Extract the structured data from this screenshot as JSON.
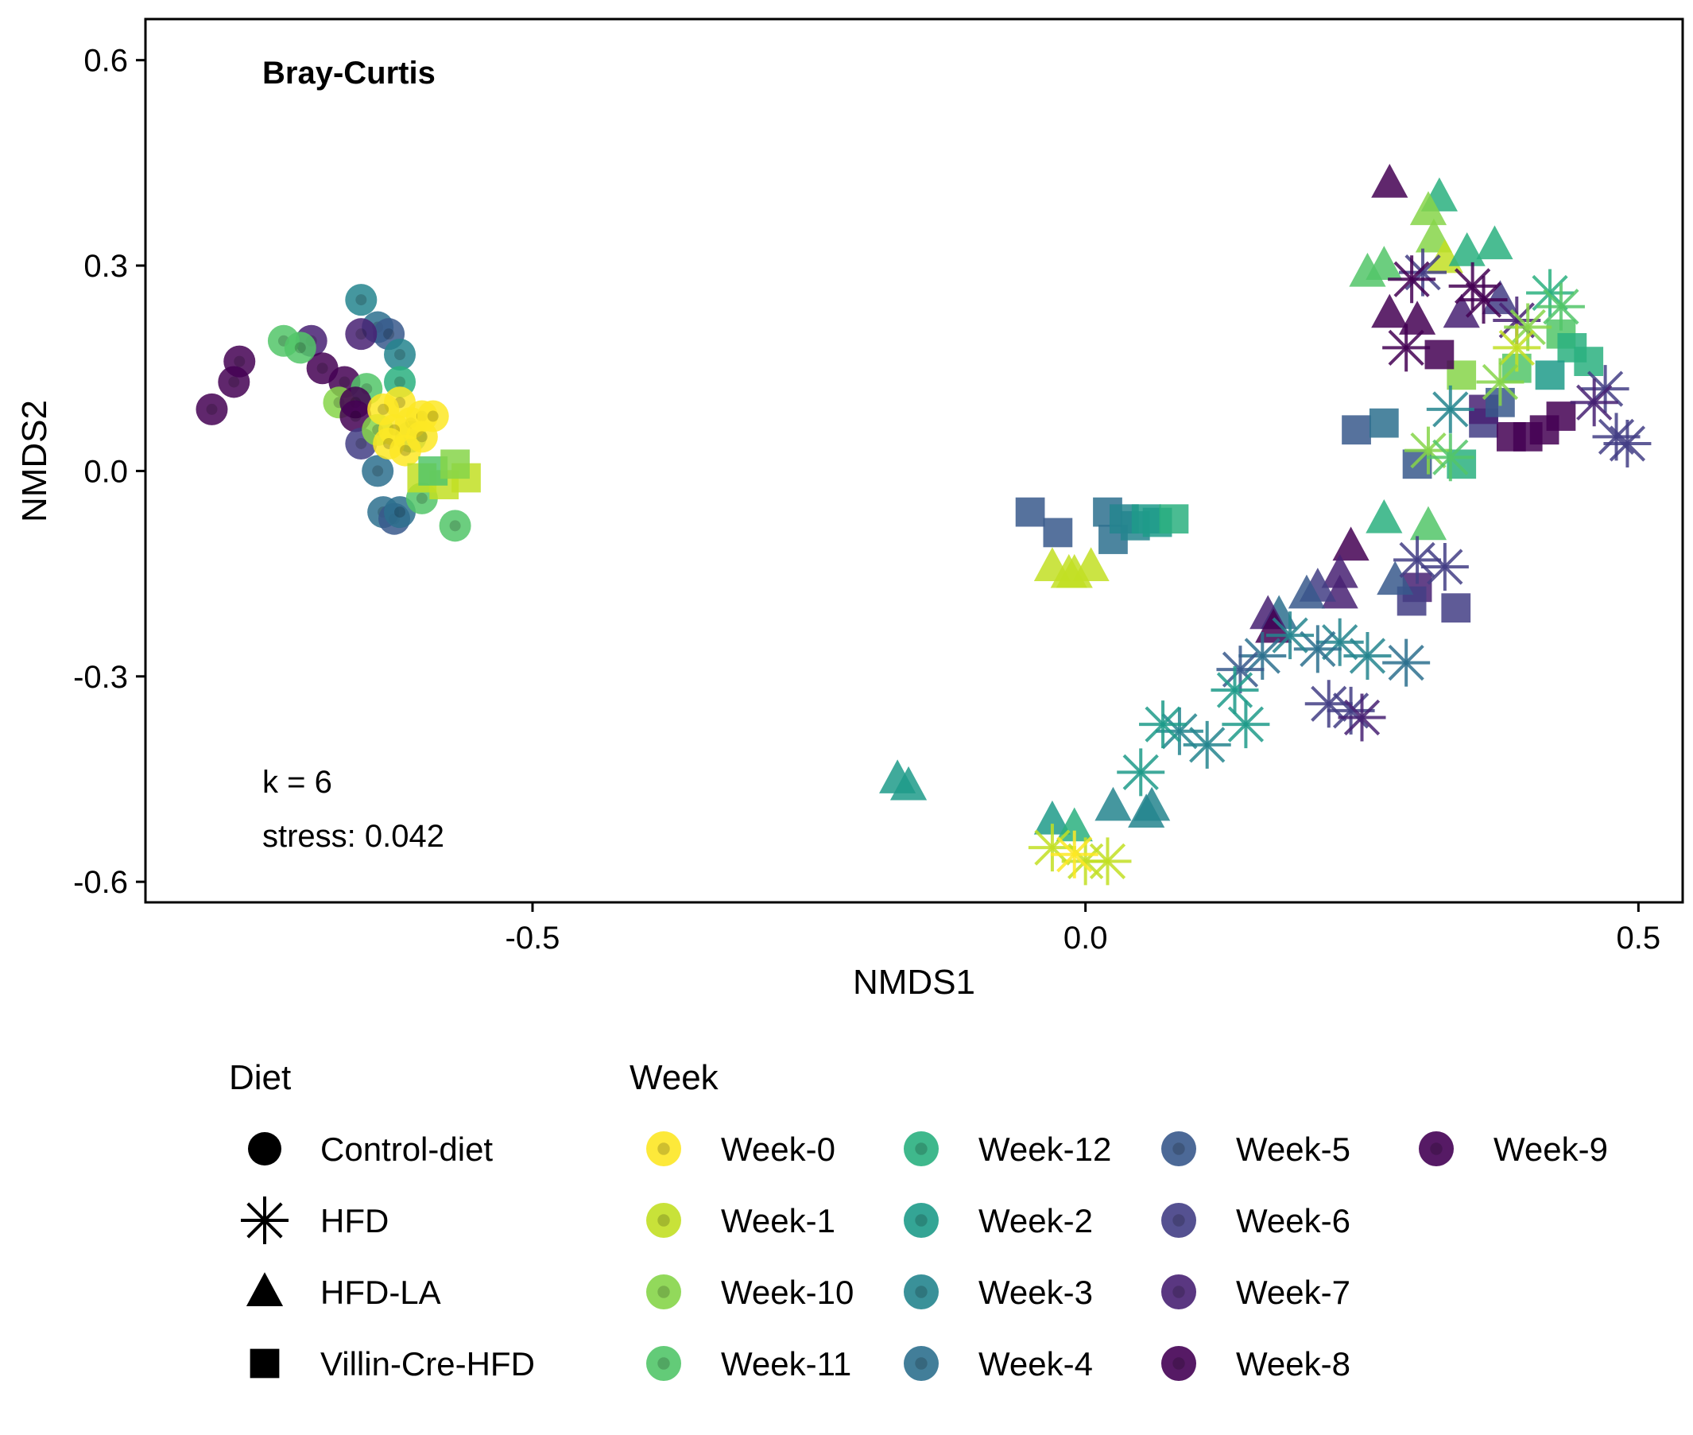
{
  "chart_data": {
    "type": "scatter",
    "title": "Bray-Curtis",
    "xlabel": "NMDS1",
    "ylabel": "NMDS2",
    "xlim": [
      -0.85,
      0.54
    ],
    "ylim": [
      -0.63,
      0.66
    ],
    "xticks": [
      {
        "v": -0.5,
        "label": "-0.5"
      },
      {
        "v": 0.0,
        "label": "0.0"
      },
      {
        "v": 0.5,
        "label": "0.5"
      }
    ],
    "yticks": [
      {
        "v": 0.6,
        "label": "0.6"
      },
      {
        "v": 0.3,
        "label": "0.3"
      },
      {
        "v": 0.0,
        "label": "0.0"
      },
      {
        "v": -0.3,
        "label": "-0.3"
      },
      {
        "v": -0.6,
        "label": "-0.6"
      }
    ],
    "annotations": {
      "k": "k = 6",
      "stress": "stress: 0.042"
    },
    "grid": false,
    "legend_position": "bottom",
    "diet_legend": {
      "title": "Diet",
      "items": [
        {
          "name": "Control-diet",
          "shape": "circle"
        },
        {
          "name": "HFD",
          "shape": "asterisk"
        },
        {
          "name": "HFD-LA",
          "shape": "triangle"
        },
        {
          "name": "Villin-Cre-HFD",
          "shape": "square"
        }
      ]
    },
    "week_legend": {
      "title": "Week",
      "items": [
        {
          "name": "Week-0",
          "color": "#FDE725"
        },
        {
          "name": "Week-1",
          "color": "#C2DF23"
        },
        {
          "name": "Week-10",
          "color": "#86D549"
        },
        {
          "name": "Week-11",
          "color": "#52C569"
        },
        {
          "name": "Week-12",
          "color": "#2AB07F"
        },
        {
          "name": "Week-2",
          "color": "#1E9B8A"
        },
        {
          "name": "Week-3",
          "color": "#25858E"
        },
        {
          "name": "Week-4",
          "color": "#2D708E"
        },
        {
          "name": "Week-5",
          "color": "#38598C"
        },
        {
          "name": "Week-6",
          "color": "#433E85"
        },
        {
          "name": "Week-7",
          "color": "#482173"
        },
        {
          "name": "Week-8",
          "color": "#440154"
        },
        {
          "name": "Week-9",
          "color": "#440154"
        }
      ]
    },
    "series": [
      {
        "diet": "Control-diet",
        "points": [
          [
            -0.79,
            0.09,
            "Week-8"
          ],
          [
            -0.77,
            0.13,
            "Week-8"
          ],
          [
            -0.765,
            0.16,
            "Week-8"
          ],
          [
            -0.7,
            0.19,
            "Week-7"
          ],
          [
            -0.69,
            0.15,
            "Week-9"
          ],
          [
            -0.67,
            0.13,
            "Week-8"
          ],
          [
            -0.725,
            0.19,
            "Week-11"
          ],
          [
            -0.71,
            0.18,
            "Week-11"
          ],
          [
            -0.675,
            0.1,
            "Week-10"
          ],
          [
            -0.655,
            0.25,
            "Week-3"
          ],
          [
            -0.64,
            0.21,
            "Week-4"
          ],
          [
            -0.63,
            0.2,
            "Week-5"
          ],
          [
            -0.655,
            0.2,
            "Week-7"
          ],
          [
            -0.62,
            0.17,
            "Week-3"
          ],
          [
            -0.65,
            0.12,
            "Week-11"
          ],
          [
            -0.66,
            0.1,
            "Week-8"
          ],
          [
            -0.66,
            0.08,
            "Week-9"
          ],
          [
            -0.655,
            0.04,
            "Week-6"
          ],
          [
            -0.64,
            0.06,
            "Week-10"
          ],
          [
            -0.64,
            0.0,
            "Week-4"
          ],
          [
            -0.635,
            -0.06,
            "Week-4"
          ],
          [
            -0.625,
            -0.07,
            "Week-5"
          ],
          [
            -0.62,
            -0.06,
            "Week-4"
          ],
          [
            -0.61,
            0.05,
            "Week-2"
          ],
          [
            -0.62,
            0.13,
            "Week-12"
          ],
          [
            -0.6,
            -0.04,
            "Week-11"
          ],
          [
            -0.57,
            -0.08,
            "Week-11"
          ],
          [
            -0.62,
            0.1,
            "Week-0"
          ],
          [
            -0.61,
            0.07,
            "Week-0"
          ],
          [
            -0.635,
            0.09,
            "Week-0"
          ],
          [
            -0.6,
            0.08,
            "Week-0"
          ],
          [
            -0.625,
            0.06,
            "Week-0"
          ],
          [
            -0.63,
            0.04,
            "Week-0"
          ],
          [
            -0.6,
            0.05,
            "Week-0"
          ],
          [
            -0.615,
            0.03,
            "Week-0"
          ],
          [
            -0.59,
            0.08,
            "Week-0"
          ]
        ]
      },
      {
        "diet": "Villin-Cre-HFD",
        "points": [
          [
            -0.6,
            -0.01,
            "Week-1"
          ],
          [
            -0.58,
            -0.02,
            "Week-1"
          ],
          [
            -0.56,
            -0.01,
            "Week-1"
          ],
          [
            -0.59,
            0.0,
            "Week-11"
          ],
          [
            -0.57,
            0.01,
            "Week-10"
          ],
          [
            -0.05,
            -0.06,
            "Week-5"
          ],
          [
            -0.025,
            -0.09,
            "Week-5"
          ],
          [
            0.02,
            -0.06,
            "Week-4"
          ],
          [
            0.025,
            -0.1,
            "Week-4"
          ],
          [
            0.035,
            -0.07,
            "Week-3"
          ],
          [
            0.045,
            -0.08,
            "Week-3"
          ],
          [
            0.055,
            -0.07,
            "Week-2"
          ],
          [
            0.065,
            -0.075,
            "Week-2"
          ],
          [
            0.08,
            -0.07,
            "Week-12"
          ],
          [
            0.245,
            0.06,
            "Week-5"
          ],
          [
            0.27,
            0.07,
            "Week-4"
          ],
          [
            0.3,
            0.01,
            "Week-5"
          ],
          [
            0.34,
            0.01,
            "Week-12"
          ],
          [
            0.34,
            0.14,
            "Week-10"
          ],
          [
            0.39,
            0.15,
            "Week-11"
          ],
          [
            0.32,
            0.17,
            "Week-9"
          ],
          [
            0.36,
            0.07,
            "Week-6"
          ],
          [
            0.385,
            0.05,
            "Week-9"
          ],
          [
            0.4,
            0.05,
            "Week-9"
          ],
          [
            0.415,
            0.06,
            "Week-9"
          ],
          [
            0.43,
            0.08,
            "Week-8"
          ],
          [
            0.36,
            0.09,
            "Week-7"
          ],
          [
            0.375,
            0.1,
            "Week-5"
          ],
          [
            0.43,
            0.2,
            "Week-11"
          ],
          [
            0.44,
            0.18,
            "Week-12"
          ],
          [
            0.455,
            0.16,
            "Week-12"
          ],
          [
            0.42,
            0.14,
            "Week-2"
          ],
          [
            0.335,
            -0.2,
            "Week-6"
          ],
          [
            0.3,
            -0.17,
            "Week-7"
          ],
          [
            0.295,
            -0.19,
            "Week-6"
          ]
        ]
      },
      {
        "diet": "HFD-LA",
        "points": [
          [
            0.275,
            0.42,
            "Week-9"
          ],
          [
            0.32,
            0.4,
            "Week-12"
          ],
          [
            0.31,
            0.38,
            "Week-10"
          ],
          [
            0.315,
            0.34,
            "Week-10"
          ],
          [
            0.325,
            0.31,
            "Week-1"
          ],
          [
            0.345,
            0.32,
            "Week-12"
          ],
          [
            0.37,
            0.33,
            "Week-12"
          ],
          [
            0.255,
            0.29,
            "Week-11"
          ],
          [
            0.27,
            0.3,
            "Week-11"
          ],
          [
            0.275,
            0.23,
            "Week-9"
          ],
          [
            0.3,
            0.22,
            "Week-8"
          ],
          [
            0.34,
            0.23,
            "Week-7"
          ],
          [
            0.375,
            0.25,
            "Week-6"
          ],
          [
            -0.03,
            -0.14,
            "Week-1"
          ],
          [
            -0.01,
            -0.15,
            "Week-1"
          ],
          [
            0.005,
            -0.14,
            "Week-1"
          ],
          [
            -0.015,
            -0.15,
            "Week-1"
          ],
          [
            -0.17,
            -0.45,
            "Week-2"
          ],
          [
            -0.16,
            -0.46,
            "Week-2"
          ],
          [
            -0.03,
            -0.51,
            "Week-2"
          ],
          [
            -0.01,
            -0.52,
            "Week-12"
          ],
          [
            0.025,
            -0.49,
            "Week-3"
          ],
          [
            0.055,
            -0.5,
            "Week-3"
          ],
          [
            0.06,
            -0.49,
            "Week-3"
          ],
          [
            0.27,
            -0.07,
            "Week-12"
          ],
          [
            0.31,
            -0.08,
            "Week-11"
          ],
          [
            0.28,
            -0.16,
            "Week-5"
          ],
          [
            0.24,
            -0.11,
            "Week-8"
          ],
          [
            0.23,
            -0.15,
            "Week-7"
          ],
          [
            0.23,
            -0.18,
            "Week-7"
          ],
          [
            0.21,
            -0.17,
            "Week-6"
          ],
          [
            0.2,
            -0.18,
            "Week-5"
          ],
          [
            0.175,
            -0.21,
            "Week-4"
          ],
          [
            0.165,
            -0.21,
            "Week-7"
          ],
          [
            0.17,
            -0.23,
            "Week-8"
          ]
        ]
      },
      {
        "diet": "HFD",
        "points": [
          [
            0.305,
            0.29,
            "Week-6"
          ],
          [
            0.295,
            0.28,
            "Week-9"
          ],
          [
            0.35,
            0.27,
            "Week-9"
          ],
          [
            0.36,
            0.25,
            "Week-8"
          ],
          [
            0.39,
            0.22,
            "Week-7"
          ],
          [
            0.42,
            0.26,
            "Week-12"
          ],
          [
            0.43,
            0.24,
            "Week-11"
          ],
          [
            0.4,
            0.21,
            "Week-10"
          ],
          [
            0.39,
            0.18,
            "Week-1"
          ],
          [
            0.29,
            0.18,
            "Week-9"
          ],
          [
            0.375,
            0.13,
            "Week-10"
          ],
          [
            0.47,
            0.12,
            "Week-6"
          ],
          [
            0.46,
            0.1,
            "Week-7"
          ],
          [
            0.48,
            0.05,
            "Week-6"
          ],
          [
            0.49,
            0.04,
            "Week-6"
          ],
          [
            0.33,
            0.09,
            "Week-3"
          ],
          [
            0.31,
            0.03,
            "Week-10"
          ],
          [
            0.33,
            0.02,
            "Week-11"
          ],
          [
            0.3,
            -0.13,
            "Week-6"
          ],
          [
            0.325,
            -0.14,
            "Week-6"
          ],
          [
            0.29,
            -0.28,
            "Week-4"
          ],
          [
            0.255,
            -0.27,
            "Week-3"
          ],
          [
            0.23,
            -0.25,
            "Week-3"
          ],
          [
            0.21,
            -0.26,
            "Week-4"
          ],
          [
            0.185,
            -0.24,
            "Week-3"
          ],
          [
            0.16,
            -0.27,
            "Week-4"
          ],
          [
            0.14,
            -0.29,
            "Week-5"
          ],
          [
            0.135,
            -0.32,
            "Week-2"
          ],
          [
            0.145,
            -0.37,
            "Week-2"
          ],
          [
            0.11,
            -0.4,
            "Week-3"
          ],
          [
            0.085,
            -0.38,
            "Week-3"
          ],
          [
            0.07,
            -0.37,
            "Week-2"
          ],
          [
            0.05,
            -0.44,
            "Week-2"
          ],
          [
            0.22,
            -0.34,
            "Week-6"
          ],
          [
            0.24,
            -0.35,
            "Week-6"
          ],
          [
            0.25,
            -0.36,
            "Week-7"
          ],
          [
            -0.03,
            -0.55,
            "Week-1"
          ],
          [
            0.0,
            -0.57,
            "Week-1"
          ],
          [
            0.02,
            -0.57,
            "Week-1"
          ],
          [
            -0.01,
            -0.56,
            "Week-0"
          ]
        ]
      }
    ]
  }
}
